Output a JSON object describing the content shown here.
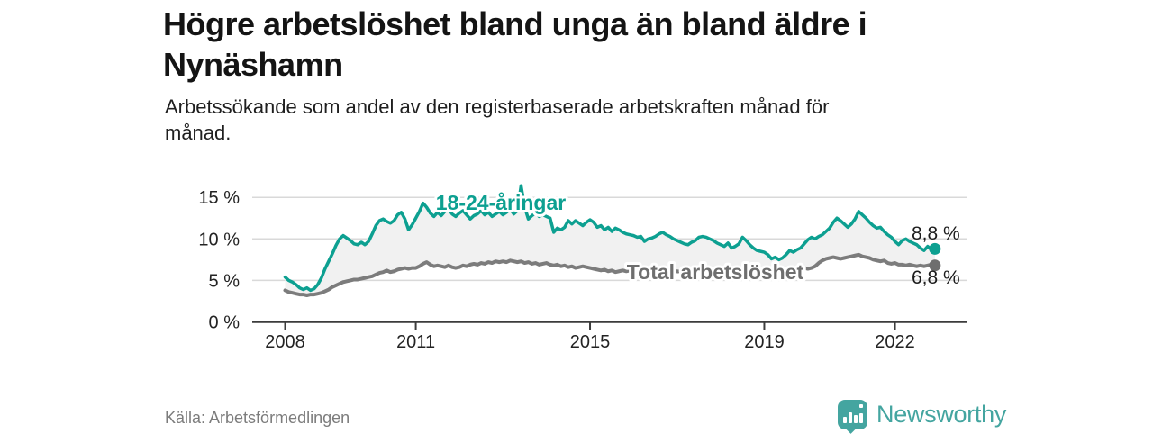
{
  "header": {
    "title_line1": "Högre arbetslöshet bland unga än bland äldre i",
    "title_line2": "Nynäshamn",
    "subtitle_line1": "Arbetssökande som andel av den registerbaserade arbetskraften månad för",
    "subtitle_line2": "månad."
  },
  "footer": {
    "source": "Källa: Arbetsförmedlingen",
    "brand": "Newsworthy"
  },
  "colors": {
    "accent_teal": "#0da091",
    "series_gray": "#7c7c7c",
    "gray_dot": "#6e6e6e",
    "logo_teal": "#44a5a0",
    "band_fill": "#f1f1f1",
    "gridline": "#d9d9d9",
    "axis": "#3c3c3c"
  },
  "chart_data": {
    "type": "line",
    "x_unit": "month",
    "x_domain": [
      "2008-01",
      "2022-12"
    ],
    "ylim": [
      0,
      15
    ],
    "grid": "horizontal",
    "x_ticks": [
      {
        "year": 2008,
        "label": "2008"
      },
      {
        "year": 2011,
        "label": "2011"
      },
      {
        "year": 2015,
        "label": "2015"
      },
      {
        "year": 2019,
        "label": "2019"
      },
      {
        "year": 2022,
        "label": "2022"
      }
    ],
    "y_ticks": [
      {
        "value": 0,
        "label": "0 %"
      },
      {
        "value": 5,
        "label": "5 %"
      },
      {
        "value": 10,
        "label": "10 %"
      },
      {
        "value": 15,
        "label": "15 %"
      }
    ],
    "series": [
      {
        "name": "18-24-åringar",
        "color": "#0da091",
        "end_label": "8,8 %",
        "end_value": 8.8,
        "values": [
          5.4,
          5.0,
          4.8,
          4.5,
          4.1,
          3.9,
          4.1,
          3.8,
          4.0,
          4.5,
          5.3,
          6.4,
          7.3,
          8.2,
          9.2,
          10.0,
          10.4,
          10.1,
          9.8,
          9.4,
          9.3,
          9.6,
          9.3,
          9.7,
          10.6,
          11.6,
          12.2,
          12.4,
          12.1,
          11.9,
          12.2,
          12.9,
          13.2,
          12.4,
          11.1,
          11.7,
          12.5,
          13.3,
          14.3,
          13.8,
          13.1,
          12.7,
          13.2,
          12.8,
          13.3,
          13.6,
          13.0,
          12.7,
          13.1,
          13.4,
          12.9,
          12.4,
          12.8,
          13.0,
          13.4,
          12.9,
          13.2,
          12.7,
          13.0,
          13.3,
          12.9,
          13.2,
          13.6,
          13.0,
          13.4,
          16.4,
          13.8,
          12.4,
          12.8,
          13.1,
          12.7,
          12.9,
          12.7,
          12.5,
          10.8,
          11.3,
          11.1,
          11.4,
          12.2,
          11.8,
          12.2,
          11.9,
          11.6,
          12.0,
          12.3,
          12.0,
          11.4,
          11.6,
          11.1,
          11.4,
          10.9,
          11.3,
          11.1,
          10.8,
          10.6,
          10.5,
          10.4,
          10.2,
          10.3,
          9.7,
          10.0,
          10.1,
          10.3,
          10.6,
          10.8,
          10.5,
          10.3,
          10.0,
          9.8,
          9.6,
          9.4,
          9.3,
          9.6,
          9.8,
          10.2,
          10.3,
          10.2,
          10.0,
          9.8,
          9.5,
          9.3,
          9.1,
          9.5,
          8.9,
          9.1,
          9.4,
          10.2,
          9.8,
          9.3,
          8.9,
          8.6,
          8.5,
          8.4,
          8.1,
          7.6,
          7.8,
          7.5,
          7.7,
          8.1,
          8.6,
          8.4,
          8.7,
          8.9,
          9.4,
          9.9,
          10.2,
          10.0,
          10.3,
          10.5,
          10.9,
          11.3,
          12.0,
          12.5,
          12.2,
          11.8,
          11.4,
          11.8,
          12.4,
          13.3,
          12.9,
          12.5,
          12.0,
          11.6,
          11.3,
          11.4,
          10.9,
          10.5,
          10.2,
          9.7,
          9.3,
          9.8,
          10.0,
          9.7,
          9.5,
          9.3,
          8.9,
          8.6,
          9.1,
          8.7,
          8.8
        ]
      },
      {
        "name": "Total arbetslöshet",
        "color": "#7c7c7c",
        "end_label": "6,8 %",
        "end_value": 6.8,
        "values": [
          3.8,
          3.6,
          3.5,
          3.4,
          3.3,
          3.3,
          3.2,
          3.3,
          3.3,
          3.4,
          3.5,
          3.7,
          3.9,
          4.2,
          4.4,
          4.6,
          4.8,
          4.9,
          5.0,
          5.1,
          5.1,
          5.2,
          5.3,
          5.4,
          5.5,
          5.7,
          5.9,
          6.0,
          6.2,
          6.0,
          6.1,
          6.3,
          6.4,
          6.5,
          6.4,
          6.5,
          6.5,
          6.7,
          7.0,
          7.2,
          6.9,
          6.7,
          6.8,
          6.7,
          6.6,
          6.8,
          6.6,
          6.5,
          6.6,
          6.8,
          6.7,
          6.9,
          7.0,
          6.9,
          7.1,
          7.0,
          7.2,
          7.1,
          7.3,
          7.2,
          7.3,
          7.2,
          7.4,
          7.3,
          7.2,
          7.3,
          7.1,
          7.2,
          7.0,
          7.1,
          6.9,
          7.0,
          7.1,
          6.9,
          6.8,
          6.9,
          6.7,
          6.8,
          6.6,
          6.7,
          6.5,
          6.6,
          6.7,
          6.6,
          6.5,
          6.4,
          6.3,
          6.2,
          6.3,
          6.1,
          6.2,
          6.0,
          6.1,
          6.2,
          6.1,
          6.2,
          6.3,
          6.2,
          6.1,
          6.2,
          6.3,
          6.2,
          6.1,
          6.0,
          6.1,
          6.0,
          5.9,
          6.0,
          6.1,
          6.0,
          6.1,
          6.2,
          6.1,
          6.0,
          6.1,
          6.2,
          6.1,
          6.2,
          6.1,
          6.0,
          6.0,
          5.9,
          6.0,
          5.9,
          5.8,
          5.9,
          6.0,
          5.9,
          6.0,
          6.1,
          6.0,
          6.1,
          6.2,
          6.1,
          6.2,
          6.3,
          6.2,
          6.3,
          6.4,
          6.5,
          6.4,
          6.5,
          6.6,
          6.5,
          6.4,
          6.5,
          6.7,
          7.1,
          7.4,
          7.6,
          7.7,
          7.8,
          7.7,
          7.6,
          7.7,
          7.8,
          7.9,
          8.0,
          8.1,
          7.9,
          7.8,
          7.7,
          7.5,
          7.4,
          7.3,
          7.4,
          7.1,
          7.0,
          7.1,
          6.9,
          6.9,
          6.8,
          6.9,
          6.8,
          6.7,
          6.8,
          6.7,
          6.8,
          6.9,
          6.8
        ]
      }
    ]
  }
}
